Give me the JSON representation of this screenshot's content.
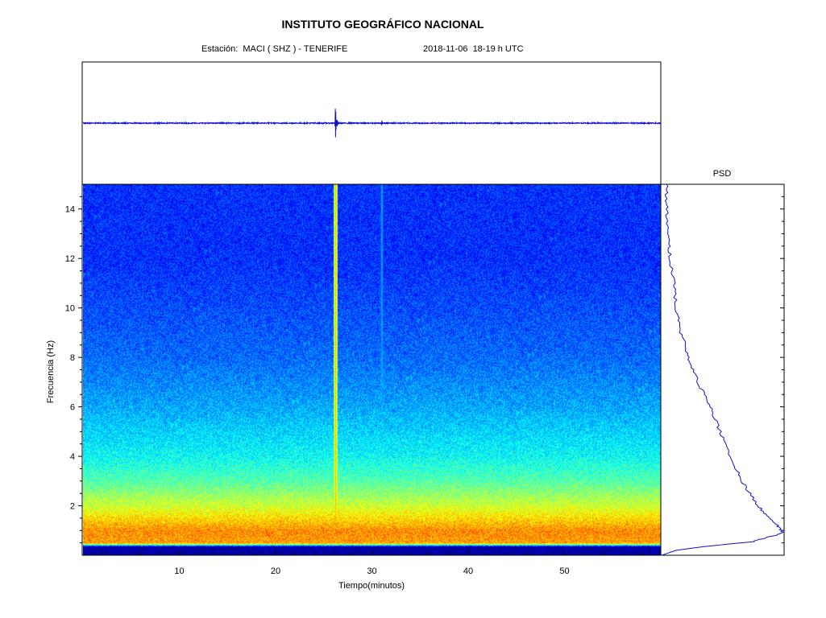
{
  "header": {
    "title": "INSTITUTO GEOGRÁFICO NACIONAL",
    "station": "Estación:  MACI ( SHZ ) - TENERIFE",
    "date": "2018-11-06  18-19 h UTC"
  },
  "chart_data": [
    {
      "type": "line",
      "panel": "seismogram",
      "x_range": [
        0,
        60
      ],
      "trace_color": "#1010c8",
      "noise_amplitude": 0.03,
      "events": [
        {
          "time": 26.2,
          "amplitude": 1.0
        },
        {
          "time": 31.0,
          "amplitude": 0.15
        }
      ]
    },
    {
      "type": "heatmap",
      "panel": "spectrogram",
      "xlabel": "Tiempo(minutos)",
      "ylabel": "Frecuencia  (Hz)",
      "xlim": [
        0,
        60
      ],
      "ylim": [
        0,
        15
      ],
      "xticks": [
        10,
        20,
        30,
        40,
        50
      ],
      "yticks": [
        2,
        4,
        6,
        8,
        10,
        12,
        14
      ],
      "colormap": "jet",
      "energy_profile": [
        {
          "freq": 0.0,
          "level": 0.05
        },
        {
          "freq": 0.35,
          "level": 0.05
        },
        {
          "freq": 0.5,
          "level": 0.72
        },
        {
          "freq": 1.0,
          "level": 0.74
        },
        {
          "freq": 2.0,
          "level": 0.58
        },
        {
          "freq": 3.0,
          "level": 0.46
        },
        {
          "freq": 4.0,
          "level": 0.38
        },
        {
          "freq": 6.0,
          "level": 0.29
        },
        {
          "freq": 8.0,
          "level": 0.23
        },
        {
          "freq": 10.0,
          "level": 0.2
        },
        {
          "freq": 12.0,
          "level": 0.17
        },
        {
          "freq": 15.0,
          "level": 0.17
        }
      ],
      "events": [
        {
          "time": 26.2,
          "freq_min": 1.2,
          "freq_max": 15.0,
          "level": 0.7
        },
        {
          "time": 31.0,
          "freq_min": 5.0,
          "freq_max": 15.0,
          "level": 0.32
        }
      ]
    },
    {
      "type": "line",
      "panel": "psd",
      "title": "PSD",
      "line_color": "#1010c8",
      "ylim": [
        0,
        15
      ],
      "xlim": [
        0,
        1
      ],
      "points": [
        {
          "freq": 0.0,
          "power": 0.0
        },
        {
          "freq": 0.2,
          "power": 0.12
        },
        {
          "freq": 0.35,
          "power": 0.35
        },
        {
          "freq": 0.55,
          "power": 0.75
        },
        {
          "freq": 0.9,
          "power": 1.0
        },
        {
          "freq": 1.3,
          "power": 0.93
        },
        {
          "freq": 2.0,
          "power": 0.79
        },
        {
          "freq": 3.0,
          "power": 0.66
        },
        {
          "freq": 4.0,
          "power": 0.56
        },
        {
          "freq": 5.0,
          "power": 0.48
        },
        {
          "freq": 6.0,
          "power": 0.4
        },
        {
          "freq": 7.0,
          "power": 0.3
        },
        {
          "freq": 8.0,
          "power": 0.22
        },
        {
          "freq": 9.0,
          "power": 0.16
        },
        {
          "freq": 10.0,
          "power": 0.12
        },
        {
          "freq": 11.0,
          "power": 0.1
        },
        {
          "freq": 12.0,
          "power": 0.07
        },
        {
          "freq": 13.0,
          "power": 0.05
        },
        {
          "freq": 14.0,
          "power": 0.04
        },
        {
          "freq": 15.0,
          "power": 0.04
        }
      ]
    }
  ]
}
